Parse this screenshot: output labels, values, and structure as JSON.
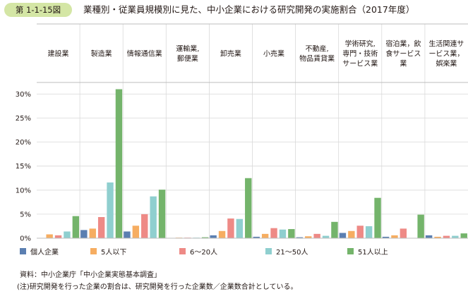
{
  "figure": {
    "label": "第 1-1-15図",
    "title": "業種別・従業員規模別に見た、中小企業における研究開発の実施割合（2017年度）"
  },
  "chart_data": {
    "type": "bar",
    "title": "業種別・従業員規模別に見た、中小企業における研究開発の実施割合（2017年度）",
    "categories": [
      [
        "建設業"
      ],
      [
        "製造業"
      ],
      [
        "情報通信業"
      ],
      [
        "運輸業,",
        "郵便業"
      ],
      [
        "卸売業"
      ],
      [
        "小売業"
      ],
      [
        "不動産,",
        "物品賃貸業"
      ],
      [
        "学術研究,",
        "専門・技術",
        "サービス業"
      ],
      [
        "宿泊業，飲",
        "食サービス",
        "業"
      ],
      [
        "生活関連サ",
        "ービス業，",
        "娯楽業"
      ]
    ],
    "series": [
      {
        "name": "個人企業",
        "color": "#5b7fb1",
        "values": [
          0.0,
          1.7,
          1.4,
          0.0,
          0.6,
          0.3,
          0.2,
          1.1,
          0.3,
          0.6
        ]
      },
      {
        "name": "5人以下",
        "color": "#f6ad61",
        "values": [
          0.8,
          2.0,
          2.6,
          0.1,
          1.5,
          0.9,
          0.4,
          1.5,
          0.6,
          0.3
        ]
      },
      {
        "name": "6～20人",
        "color": "#ee8a86",
        "values": [
          0.6,
          4.4,
          5.0,
          0.1,
          4.1,
          2.1,
          0.9,
          2.6,
          2.0,
          0.5
        ]
      },
      {
        "name": "21～50人",
        "color": "#8fcfcf",
        "values": [
          1.4,
          11.6,
          8.7,
          0.1,
          4.0,
          1.8,
          0.5,
          2.5,
          0.0,
          0.5
        ]
      },
      {
        "name": "51人以上",
        "color": "#74b46b",
        "values": [
          4.6,
          31.0,
          10.1,
          0.2,
          12.5,
          1.9,
          3.4,
          8.4,
          4.9,
          1.0
        ]
      }
    ],
    "yticks": [
      "0%",
      "5%",
      "10%",
      "15%",
      "20%",
      "25%",
      "30%"
    ],
    "ylim": [
      0,
      31
    ],
    "grid": true,
    "legend_position": "bottom"
  },
  "footer": {
    "source": "資料：中小企業庁「中小企業実態基本調査」",
    "note": "(注)研究開発を行った企業の割合は、研究開発を行った企業数／企業数合計としている。"
  }
}
